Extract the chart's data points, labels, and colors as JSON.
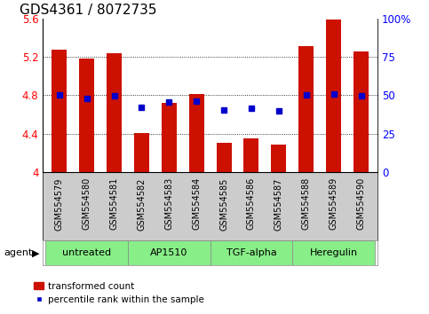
{
  "title": "GDS4361 / 8072735",
  "samples": [
    "GSM554579",
    "GSM554580",
    "GSM554581",
    "GSM554582",
    "GSM554583",
    "GSM554584",
    "GSM554585",
    "GSM554586",
    "GSM554587",
    "GSM554588",
    "GSM554589",
    "GSM554590"
  ],
  "bar_values": [
    5.27,
    5.18,
    5.24,
    4.41,
    4.72,
    4.81,
    4.3,
    4.35,
    4.29,
    5.31,
    5.59,
    5.25
  ],
  "percentile_y_values": [
    4.8,
    4.77,
    4.79,
    4.67,
    4.73,
    4.74,
    4.65,
    4.66,
    4.64,
    4.8,
    4.81,
    4.79
  ],
  "bar_bottom": 4.0,
  "ylim": [
    4.0,
    5.6
  ],
  "yticks_left": [
    4.0,
    4.4,
    4.8,
    5.2,
    5.6
  ],
  "yticks_right": [
    0,
    25,
    50,
    75,
    100
  ],
  "ytick_labels_left": [
    "4",
    "4.4",
    "4.8",
    "5.2",
    "5.6"
  ],
  "ytick_labels_right": [
    "0",
    "25",
    "50",
    "75",
    "100%"
  ],
  "bar_color": "#cc1100",
  "dot_color": "#0000cc",
  "groups": [
    {
      "label": "untreated",
      "start": 0,
      "end": 3
    },
    {
      "label": "AP1510",
      "start": 3,
      "end": 6
    },
    {
      "label": "TGF-alpha",
      "start": 6,
      "end": 9
    },
    {
      "label": "Heregulin",
      "start": 9,
      "end": 12
    }
  ],
  "group_color": "#88ee88",
  "group_border_color": "#888888",
  "label_bg_color": "#cccccc",
  "legend_bar_label": "transformed count",
  "legend_dot_label": "percentile rank within the sample",
  "agent_label": "agent",
  "title_fontsize": 11,
  "sample_fontsize": 7,
  "group_fontsize": 8,
  "legend_fontsize": 7.5,
  "bar_width": 0.55
}
